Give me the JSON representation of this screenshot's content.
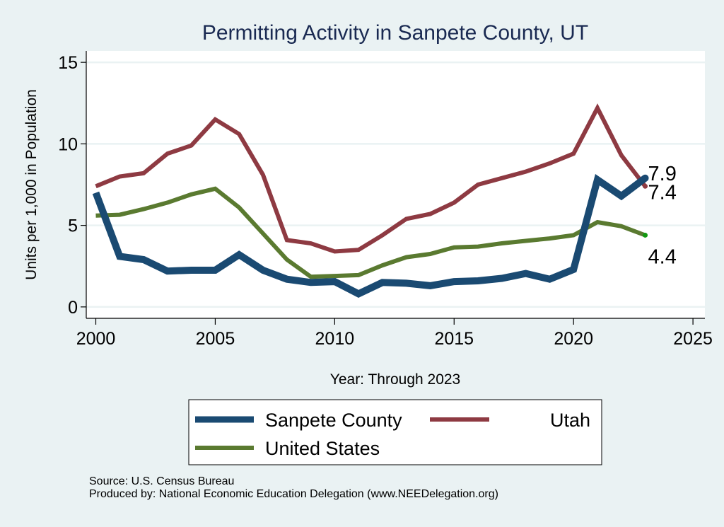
{
  "chart_data": {
    "type": "line",
    "title": "Permitting Activity in Sanpete County, UT",
    "xlabel": "Year: Through 2023",
    "ylabel": "Units per 1,000 in Population",
    "xlim": [
      1999.6,
      2025.5
    ],
    "ylim": [
      -0.7,
      15.7
    ],
    "xticks": [
      2000,
      2005,
      2010,
      2015,
      2020,
      2025
    ],
    "yticks": [
      0,
      5,
      10,
      15
    ],
    "grid": "horizontal",
    "legend_position": "bottom",
    "x": [
      2000,
      2001,
      2002,
      2003,
      2004,
      2005,
      2006,
      2007,
      2008,
      2009,
      2010,
      2011,
      2012,
      2013,
      2014,
      2015,
      2016,
      2017,
      2018,
      2019,
      2020,
      2021,
      2022,
      2023
    ],
    "series": [
      {
        "name": "Sanpete County",
        "color": "#1a4a72",
        "width": 10,
        "values": [
          7.0,
          3.1,
          2.9,
          2.2,
          2.25,
          2.25,
          3.2,
          2.25,
          1.7,
          1.5,
          1.55,
          0.8,
          1.5,
          1.45,
          1.3,
          1.55,
          1.6,
          1.75,
          2.05,
          1.7,
          2.3,
          7.8,
          6.8,
          7.9
        ],
        "end_label": "7.9"
      },
      {
        "name": "Utah",
        "color": "#8e3a42",
        "width": 6,
        "values": [
          7.4,
          8.0,
          8.2,
          9.4,
          9.9,
          11.5,
          10.6,
          8.1,
          4.1,
          3.9,
          3.4,
          3.5,
          4.4,
          5.4,
          5.7,
          6.4,
          7.5,
          7.9,
          8.3,
          8.8,
          9.4,
          12.2,
          9.3,
          7.4
        ],
        "end_label": "7.4"
      },
      {
        "name": "United States",
        "color": "#5a7a30",
        "width": 6,
        "values": [
          5.6,
          5.65,
          6.0,
          6.4,
          6.9,
          7.25,
          6.1,
          4.5,
          2.9,
          1.85,
          1.9,
          1.95,
          2.55,
          3.05,
          3.25,
          3.65,
          3.7,
          3.9,
          4.05,
          4.2,
          4.4,
          5.2,
          4.95,
          4.4
        ],
        "end_label": "4.4"
      }
    ],
    "legend": {
      "entries": [
        "Sanpete County",
        "Utah",
        "United States"
      ]
    },
    "footer": {
      "source": "Source: U.S. Census Bureau",
      "produced_by": "Produced by: National Economic Education Delegation (www.NEEDelegation.org)"
    }
  }
}
